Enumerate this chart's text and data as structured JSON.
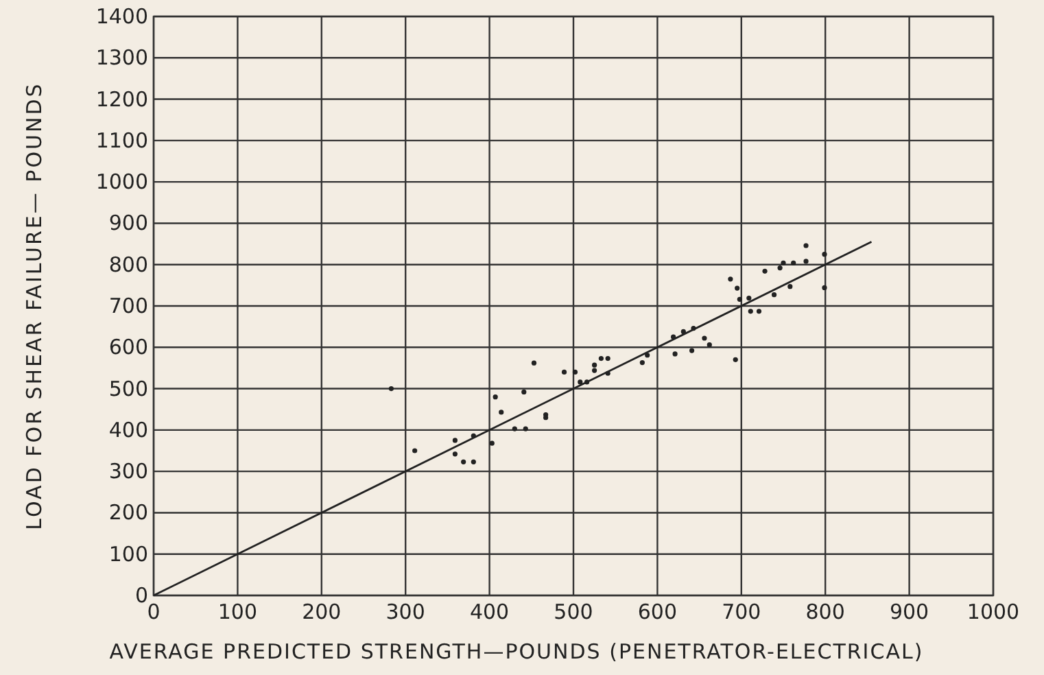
{
  "chart_data": {
    "type": "scatter",
    "xlabel": "AVERAGE PREDICTED STRENGTH—POUNDS (PENETRATOR-ELECTRICAL)",
    "ylabel": "LOAD FOR SHEAR FAILURE— POUNDS",
    "xlim": [
      0,
      1000
    ],
    "ylim": [
      0,
      1400
    ],
    "xticks": [
      0,
      100,
      200,
      300,
      400,
      500,
      600,
      700,
      800,
      900,
      1000
    ],
    "yticks": [
      0,
      100,
      200,
      300,
      400,
      500,
      600,
      700,
      800,
      900,
      1000,
      1100,
      1200,
      1300,
      1400
    ],
    "grid": true,
    "series": [
      {
        "marker": "circle",
        "color": "#222222",
        "x": [
          283,
          311,
          359,
          359,
          369,
          381,
          381,
          403,
          407,
          414,
          430,
          443,
          441,
          453,
          467,
          467,
          489,
          502,
          508,
          516,
          525,
          525,
          533,
          541,
          541,
          582,
          588,
          619,
          621,
          631,
          641,
          643,
          656,
          662,
          693,
          687,
          695,
          698,
          709,
          711,
          721,
          728,
          739,
          746,
          750,
          758,
          762,
          777,
          777,
          799,
          799
        ],
        "values": [
          500,
          350,
          375,
          342,
          323,
          323,
          386,
          368,
          480,
          443,
          403,
          403,
          492,
          562,
          437,
          430,
          540,
          540,
          516,
          516,
          544,
          557,
          573,
          573,
          537,
          563,
          581,
          625,
          584,
          638,
          592,
          646,
          622,
          606,
          570,
          765,
          743,
          716,
          719,
          687,
          687,
          784,
          727,
          792,
          804,
          747,
          804,
          808,
          846,
          825,
          744
        ]
      },
      {
        "type": "line",
        "color": "#222222",
        "x": [
          0,
          855
        ],
        "values": [
          0,
          855
        ]
      }
    ]
  }
}
